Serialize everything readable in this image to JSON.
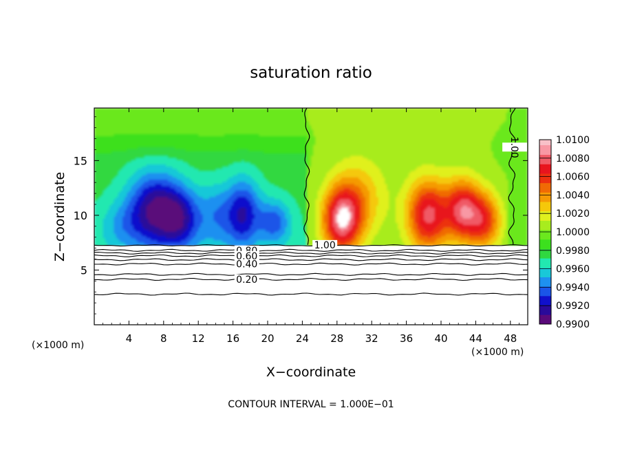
{
  "chart_data": {
    "type": "heatmap",
    "title": "saturation ratio",
    "xlabel": "X−coordinate",
    "ylabel": "Z−coordinate",
    "x_unit_label": "(×1000 m)",
    "y_unit_label": "(×1000 m)",
    "xlim": [
      0,
      50
    ],
    "ylim": [
      0,
      19.8
    ],
    "x_ticks": [
      4,
      8,
      12,
      16,
      20,
      24,
      28,
      32,
      36,
      40,
      44,
      48
    ],
    "x_tick_labels": [
      "4",
      "8",
      "12",
      "16",
      "20",
      "24",
      "28",
      "32",
      "36",
      "40",
      "44",
      "48"
    ],
    "y_ticks": [
      5,
      10,
      15
    ],
    "y_tick_labels": [
      "5",
      "10",
      "15"
    ],
    "footer": "CONTOUR INTERVAL = 1.000E−01",
    "colorbar": {
      "min": 0.99,
      "max": 1.01,
      "tick_labels": [
        "1.0100",
        "1.0080",
        "1.0060",
        "1.0040",
        "1.0020",
        "1.0000",
        "0.9980",
        "0.9960",
        "0.9940",
        "0.9920",
        "0.9900"
      ],
      "colors": [
        "#5a0a7a",
        "#2a0a9a",
        "#1010cc",
        "#1a55e8",
        "#1e90f0",
        "#19c8d8",
        "#22e8b0",
        "#30d840",
        "#3ce01e",
        "#6be81e",
        "#a8ec1e",
        "#e0f01e",
        "#f5c80a",
        "#f59a05",
        "#f06a05",
        "#ec3010",
        "#e8141e",
        "#f05a66",
        "#f898a4"
      ],
      "top_cap_color": "#f8c0c8"
    },
    "contour_labels": [
      {
        "text": "1.00",
        "x": 26.6,
        "z": 7.3
      },
      {
        "text": "1.00",
        "x": 48.5,
        "z": 16.2
      },
      {
        "text": "0.80",
        "x": 17.6,
        "z": 6.8
      },
      {
        "text": "0.60",
        "x": 17.6,
        "z": 6.3
      },
      {
        "text": "0.40",
        "x": 17.6,
        "z": 5.55
      },
      {
        "text": "0.20",
        "x": 17.6,
        "z": 4.15
      }
    ],
    "low_level_contours": [
      6.8,
      6.55,
      6.3,
      5.95,
      5.55,
      4.6,
      4.15,
      2.8
    ],
    "unsaturated_base_z": 7.2,
    "features": [
      {
        "kind": "subsaturated",
        "x": 7.0,
        "z": 10.5,
        "value": 0.9905,
        "width": 3.2,
        "height": 3.5
      },
      {
        "kind": "subsaturated",
        "x": 10.0,
        "z": 9.6,
        "value": 0.993,
        "width": 2.2,
        "height": 2.8
      },
      {
        "kind": "subsaturated",
        "x": 17.2,
        "z": 10.2,
        "value": 0.992,
        "width": 2.0,
        "height": 3.2
      },
      {
        "kind": "subsaturated",
        "x": 14.0,
        "z": 10.0,
        "value": 0.9945,
        "width": 2.2,
        "height": 3.0
      },
      {
        "kind": "subsaturated",
        "x": 20.8,
        "z": 9.4,
        "value": 0.9935,
        "width": 1.8,
        "height": 2.0
      },
      {
        "kind": "subsaturated",
        "x": 3.0,
        "z": 9.0,
        "value": 0.9955,
        "width": 2.4,
        "height": 2.2
      },
      {
        "kind": "supersaturated",
        "x": 28.5,
        "z": 9.5,
        "value": 1.0085,
        "width": 2.2,
        "height": 3.0
      },
      {
        "kind": "supersaturated",
        "x": 30.5,
        "z": 11.5,
        "value": 1.0035,
        "width": 3.0,
        "height": 3.5
      },
      {
        "kind": "supersaturated",
        "x": 38.5,
        "z": 10.0,
        "value": 1.008,
        "width": 2.4,
        "height": 3.2
      },
      {
        "kind": "supersaturated",
        "x": 42.5,
        "z": 10.5,
        "value": 1.0075,
        "width": 2.0,
        "height": 2.8
      },
      {
        "kind": "supersaturated",
        "x": 45.0,
        "z": 9.5,
        "value": 1.006,
        "width": 2.0,
        "height": 2.6
      }
    ]
  }
}
